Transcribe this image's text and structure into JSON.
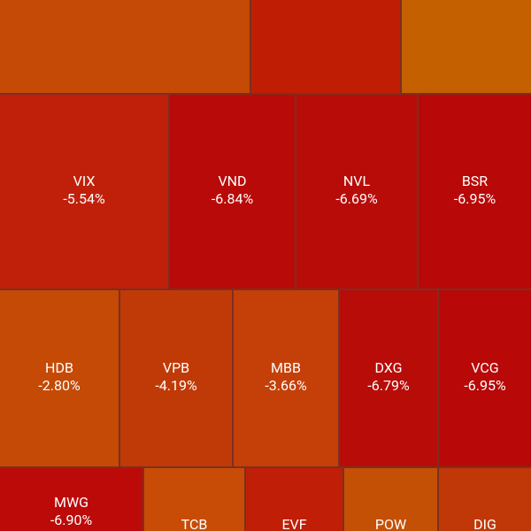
{
  "tiles": [
    {
      "symbol": "VIX",
      "change": "-5.54%"
    },
    {
      "symbol": "VND",
      "change": "-6.84%"
    },
    {
      "symbol": "NVL",
      "change": "-6.69%"
    },
    {
      "symbol": "BSR",
      "change": "-6.95%"
    },
    {
      "symbol": "HDB",
      "change": "-2.80%"
    },
    {
      "symbol": "VPB",
      "change": "-4.19%"
    },
    {
      "symbol": "MBB",
      "change": "-3.66%"
    },
    {
      "symbol": "DXG",
      "change": "-6.79%"
    },
    {
      "symbol": "VCG",
      "change": "-6.95%"
    },
    {
      "symbol": "MWG",
      "change": "-6.90%"
    },
    {
      "symbol": "TCB"
    },
    {
      "symbol": "EVF"
    },
    {
      "symbol": "POW"
    },
    {
      "symbol": "DIG"
    }
  ]
}
